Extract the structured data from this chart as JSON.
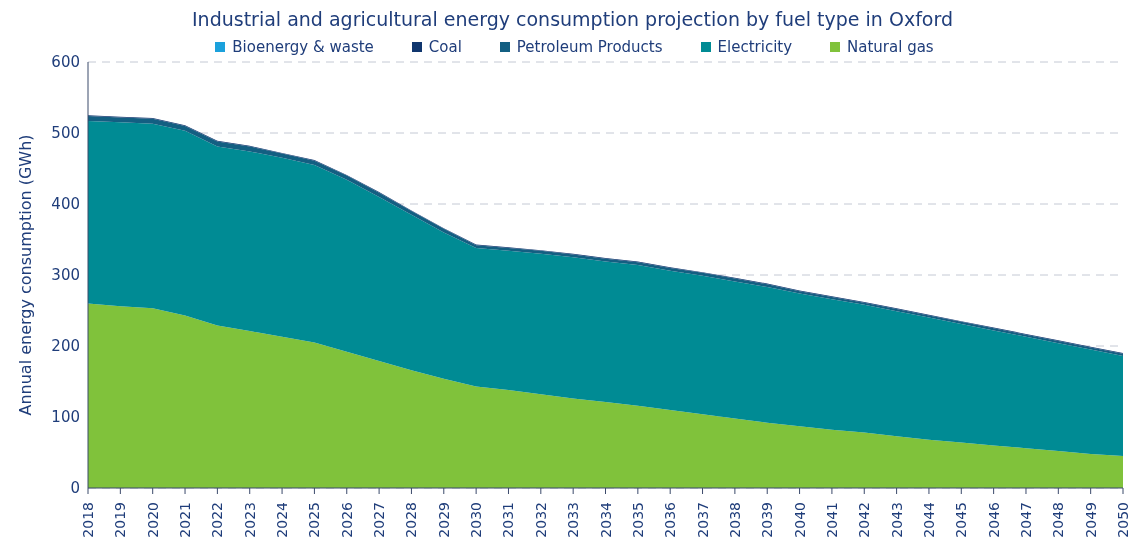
{
  "chart_data": {
    "type": "area",
    "title": "Industrial and agricultural energy consumption projection by fuel type in Oxford",
    "ylabel": "Annual energy consumption (GWh)",
    "categories": [
      "2018",
      "2019",
      "2020",
      "2021",
      "2022",
      "2023",
      "2024",
      "2025",
      "2026",
      "2027",
      "2028",
      "2029",
      "2030",
      "2031",
      "2032",
      "2033",
      "2034",
      "2035",
      "2036",
      "2037",
      "2038",
      "2039",
      "2040",
      "2041",
      "2042",
      "2043",
      "2044",
      "2045",
      "2046",
      "2047",
      "2048",
      "2049",
      "2050"
    ],
    "stacked": true,
    "ylim": [
      0,
      600
    ],
    "yticks": [
      0,
      100,
      200,
      300,
      400,
      500,
      600
    ],
    "grid": "y",
    "legend": "top",
    "series": [
      {
        "name": "Natural gas",
        "color": "#80c23b",
        "values": [
          260,
          256,
          253,
          243,
          229,
          221,
          213,
          205,
          192,
          179,
          166,
          154,
          143,
          138,
          132,
          126,
          121,
          116,
          110,
          104,
          98,
          92,
          87,
          82,
          78,
          73,
          68,
          64,
          60,
          56,
          52,
          48,
          45
        ]
      },
      {
        "name": "Electricity",
        "color": "#008b94",
        "values": [
          257,
          259,
          260,
          260,
          252,
          253,
          252,
          250,
          242,
          231,
          219,
          206,
          195,
          196,
          198,
          199,
          198,
          198,
          196,
          195,
          193,
          191,
          187,
          184,
          180,
          176,
          172,
          167,
          162,
          157,
          152,
          147,
          141
        ]
      },
      {
        "name": "Petroleum Products",
        "color": "#135f82",
        "values": [
          7,
          7,
          7,
          7,
          7,
          7,
          6,
          6,
          6,
          6,
          5,
          5,
          4,
          4,
          4,
          4,
          4,
          4,
          4,
          4,
          4,
          4,
          3,
          3,
          3,
          3,
          3,
          3,
          3,
          3,
          3,
          3,
          3
        ]
      },
      {
        "name": "Coal",
        "color": "#10366e",
        "values": [
          1,
          1,
          1,
          1,
          1,
          1,
          1,
          1,
          1,
          1,
          1,
          1,
          1,
          1,
          1,
          1,
          1,
          1,
          1,
          1,
          1,
          1,
          1,
          1,
          1,
          1,
          1,
          1,
          1,
          1,
          1,
          1,
          1
        ]
      },
      {
        "name": "Bioenergy & waste",
        "color": "#1ba1dc",
        "values": [
          null,
          null,
          null,
          null,
          null,
          null,
          null,
          null,
          null,
          null,
          null,
          null,
          null,
          null,
          null,
          null,
          null,
          null,
          null,
          null,
          null,
          null,
          null,
          null,
          null,
          null,
          null,
          null,
          null,
          null,
          null,
          null,
          null
        ]
      }
    ]
  }
}
